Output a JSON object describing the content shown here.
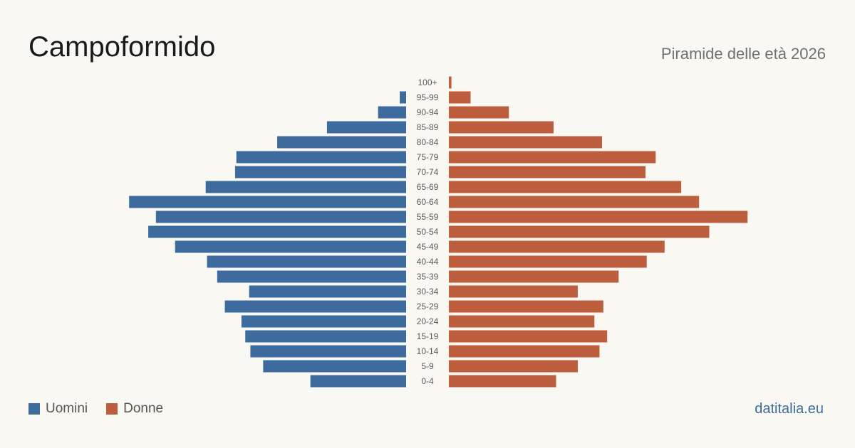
{
  "header": {
    "title": "Campoformido",
    "subtitle": "Piramide delle età 2026"
  },
  "legend": {
    "men_label": "Uomini",
    "women_label": "Donne"
  },
  "brand": "datitalia.eu",
  "colors": {
    "men": "#3d6b9e",
    "women": "#bd5f3f",
    "background": "#faf8f3",
    "age_label": "#5a5a5a"
  },
  "chart_data": {
    "type": "bar",
    "orientation": "horizontal-pyramid",
    "categories": [
      "100+",
      "95-99",
      "90-94",
      "85-89",
      "80-84",
      "75-79",
      "70-74",
      "65-69",
      "60-64",
      "55-59",
      "50-54",
      "45-49",
      "40-44",
      "35-39",
      "30-34",
      "25-29",
      "20-24",
      "15-19",
      "10-14",
      "5-9",
      "0-4"
    ],
    "series": [
      {
        "name": "Uomini",
        "values": [
          0,
          5,
          22,
          62,
          101,
          133,
          134,
          157,
          217,
          196,
          202,
          181,
          156,
          148,
          123,
          142,
          129,
          126,
          122,
          112,
          75
        ]
      },
      {
        "name": "Donne",
        "values": [
          2,
          17,
          47,
          82,
          120,
          162,
          154,
          182,
          196,
          234,
          204,
          169,
          155,
          133,
          101,
          121,
          114,
          124,
          118,
          101,
          84
        ]
      }
    ],
    "xlim": [
      0,
      240
    ],
    "grid": false,
    "legend_position": "bottom-left"
  }
}
